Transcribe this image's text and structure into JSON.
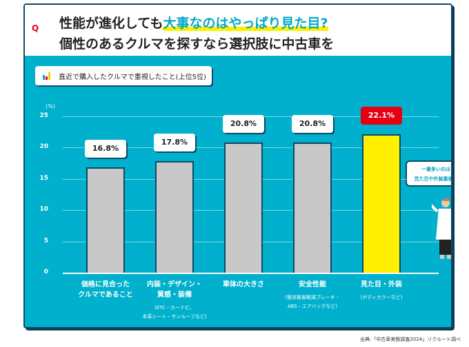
{
  "header": {
    "line1_plain": "性能が進化しても",
    "line1_highlight": "大事なのはやっぱり見た目?",
    "line2": "個性のあるクルマを探すなら選択肢に中古車を",
    "q_mark": "Q"
  },
  "subtitle": "直近で購入したクルマで重視したこと(上位5位)",
  "bubble": {
    "line1": "一番多いのは",
    "line2": "見た目や外装重視派"
  },
  "source": "出典:「中古車実態調査2024」リクルート調べ",
  "colors": {
    "bg": "#00b0cc",
    "bar": "#c8c8c8",
    "highlight": "#fff000",
    "label_hi": "#e60012"
  },
  "chart_data": {
    "type": "bar",
    "title": "直近で購入したクルマで重視したこと(上位5位)",
    "ylabel": "(%)",
    "ylim": [
      0,
      25
    ],
    "yticks": [
      "0",
      "5",
      "10",
      "15",
      "20",
      "25"
    ],
    "categories": [
      "価格に見合ったクルマであること",
      "内装・デザイン・質感・装備",
      "車体の大きさ",
      "安全性能",
      "見た目・外装"
    ],
    "cat_lines": [
      [
        "価格に見合った",
        "クルマであること"
      ],
      [
        "内装・デザイン・",
        "質感・装備"
      ],
      [
        "車体の大きさ"
      ],
      [
        "安全性能"
      ],
      [
        "見た目・外装"
      ]
    ],
    "notes": [
      [],
      [
        "(ETC・カーナビ、",
        "本革シート・サンルーフなど)"
      ],
      [],
      [
        "(衝突被害軽減ブレーキ・",
        "ABS・エアバッグなど)"
      ],
      [
        "(ボディカラーなど)"
      ]
    ],
    "values": [
      16.8,
      17.8,
      20.8,
      20.8,
      22.1
    ],
    "labels": [
      "16.8%",
      "17.8%",
      "20.8%",
      "20.8%",
      "22.1%"
    ],
    "highlight_index": 4
  }
}
